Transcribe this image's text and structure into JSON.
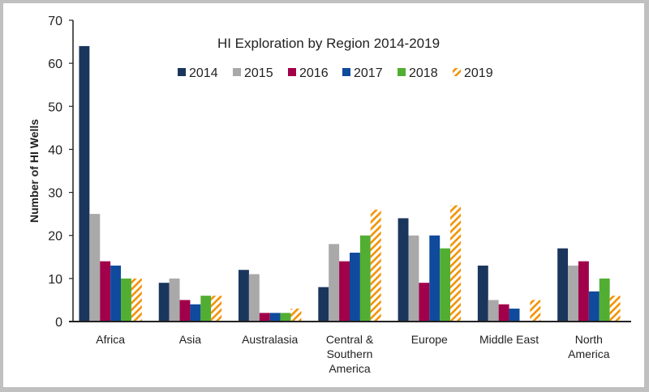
{
  "chart_data": {
    "type": "bar",
    "title": "HI Exploration by Region 2014-2019",
    "xlabel": "",
    "ylabel": "Number of HI Wells",
    "ylim": [
      0,
      70
    ],
    "yticks": [
      0,
      10,
      20,
      30,
      40,
      50,
      60,
      70
    ],
    "grid": false,
    "legend_position": "top-center",
    "categories": [
      [
        "Africa"
      ],
      [
        "Asia"
      ],
      [
        "Australasia"
      ],
      [
        "Central &",
        "Southern",
        "America"
      ],
      [
        "Europe"
      ],
      [
        "Middle East"
      ],
      [
        "North",
        "America"
      ]
    ],
    "series": [
      {
        "name": "2014",
        "color": "#1b365d",
        "pattern": "solid",
        "values": [
          64,
          9,
          12,
          8,
          24,
          13,
          17
        ]
      },
      {
        "name": "2015",
        "color": "#a9a9a9",
        "pattern": "solid",
        "values": [
          25,
          10,
          11,
          18,
          20,
          5,
          13
        ]
      },
      {
        "name": "2016",
        "color": "#a1004a",
        "pattern": "solid",
        "values": [
          14,
          5,
          2,
          14,
          9,
          4,
          14
        ]
      },
      {
        "name": "2017",
        "color": "#0f4a9c",
        "pattern": "solid",
        "values": [
          13,
          4,
          2,
          16,
          20,
          3,
          7
        ]
      },
      {
        "name": "2018",
        "color": "#52ae32",
        "pattern": "solid",
        "values": [
          10,
          6,
          2,
          20,
          17,
          0,
          10
        ]
      },
      {
        "name": "2019",
        "color": "#f39200",
        "pattern": "hatched",
        "values": [
          10,
          6,
          3,
          26,
          27,
          5,
          6
        ]
      }
    ]
  }
}
